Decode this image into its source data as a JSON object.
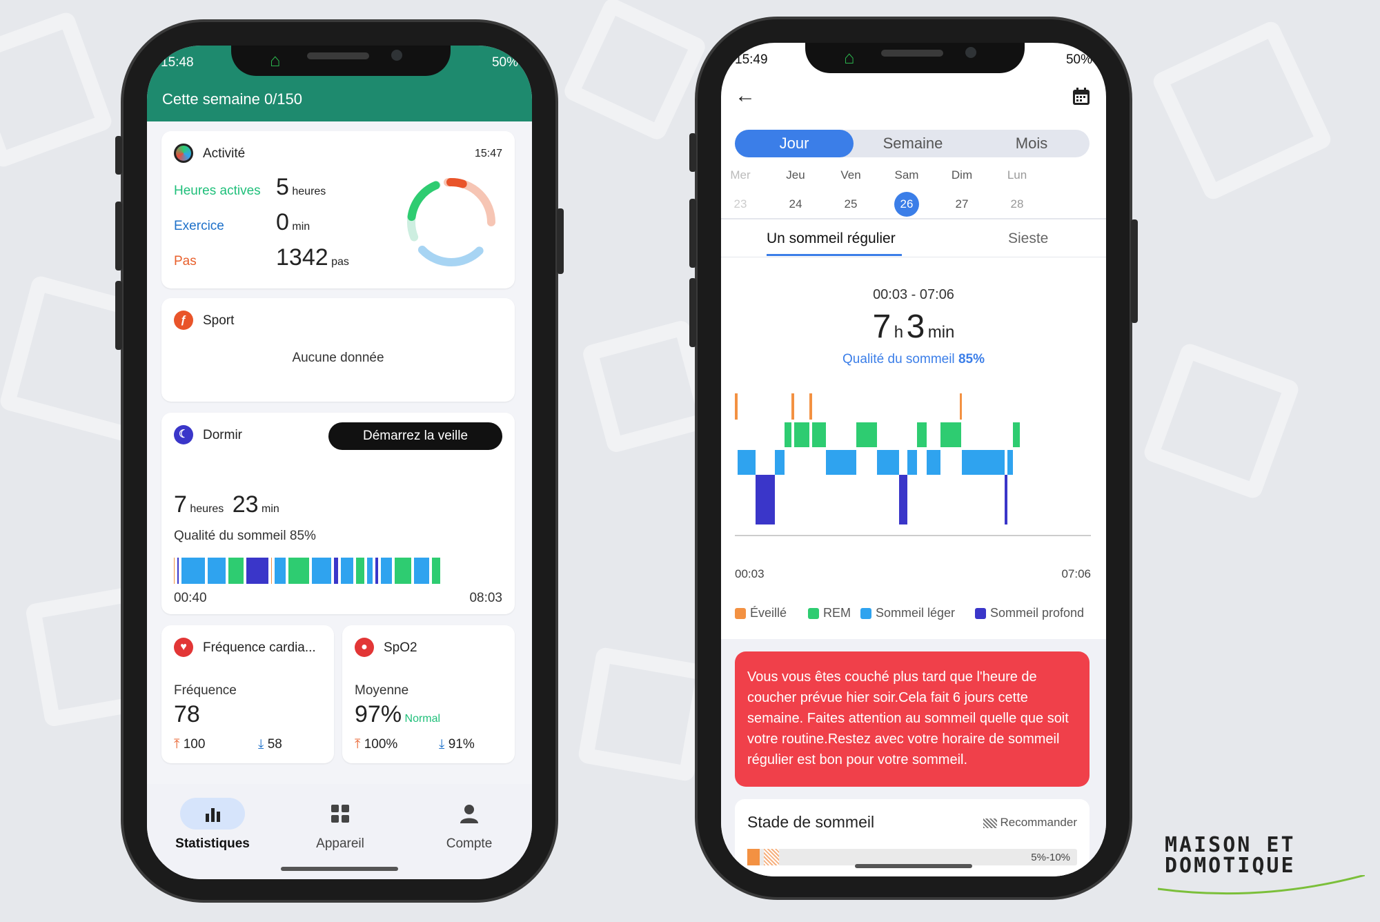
{
  "left": {
    "status_time": "15:48",
    "status_right": "50%",
    "header_title": "Cette semaine 0/150",
    "activity": {
      "title": "Activité",
      "time": "15:47",
      "active_hours_label": "Heures actives",
      "active_hours_value": "5",
      "active_hours_unit": "heures",
      "exercise_label": "Exercice",
      "exercise_value": "0",
      "exercise_unit": "min",
      "steps_label": "Pas",
      "steps_value": "1342",
      "steps_unit": "pas"
    },
    "sport": {
      "title": "Sport",
      "empty": "Aucune donnée"
    },
    "sleep": {
      "title": "Dormir",
      "button": "Démarrez la veille",
      "hours": "7",
      "hours_unit": "heures",
      "minutes": "23",
      "minutes_unit": "min",
      "quality": "Qualité du sommeil 85%",
      "start": "00:40",
      "end": "08:03"
    },
    "heart": {
      "title": "Fréquence cardia...",
      "label": "Fréquence",
      "value": "78",
      "max": "100",
      "min": "58"
    },
    "spo2": {
      "title": "SpO2",
      "label": "Moyenne",
      "value": "97%",
      "status": "Normal",
      "max": "100%",
      "min": "91%"
    },
    "nav": {
      "stats": "Statistiques",
      "device": "Appareil",
      "account": "Compte"
    }
  },
  "right": {
    "status_time": "15:49",
    "status_right": "50%",
    "segments": [
      "Jour",
      "Semaine",
      "Mois"
    ],
    "days": [
      {
        "name": "Mer",
        "num": "23"
      },
      {
        "name": "Jeu",
        "num": "24"
      },
      {
        "name": "Ven",
        "num": "25"
      },
      {
        "name": "Sam",
        "num": "26"
      },
      {
        "name": "Dim",
        "num": "27"
      },
      {
        "name": "Lun",
        "num": "28"
      }
    ],
    "tabs": {
      "regular": "Un sommeil régulier",
      "nap": "Sieste"
    },
    "range": "00:03 - 07:06",
    "duration_h": "7",
    "h_unit": "h",
    "duration_m": "3",
    "m_unit": "min",
    "quality_label": "Qualité du sommeil",
    "quality_value": "85%",
    "axis_start": "00:03",
    "axis_end": "07:06",
    "legend": {
      "awake": "Éveillé",
      "rem": "REM",
      "light": "Sommeil léger",
      "deep": "Sommeil profond"
    },
    "alert": "Vous vous êtes couché plus tard que l'heure de coucher prévue hier soir.Cela fait 6 jours cette semaine. Faites attention au sommeil quelle que soit votre routine.Restez avec votre horaire de sommeil régulier est bon pour votre sommeil.",
    "stage_title": "Stade de sommeil",
    "recommend": "Recommander",
    "stage_pct": "5%-10%"
  },
  "brand": {
    "line1": "MAISON ET",
    "line2": "DOMOTIQUE"
  },
  "colors": {
    "awake": "#f39142",
    "rem": "#2ecc71",
    "light": "#2fa3ef",
    "deep": "#3a36c9",
    "header": "#1e8a6e",
    "accent": "#3b7ee8",
    "alert": "#f0404a"
  }
}
